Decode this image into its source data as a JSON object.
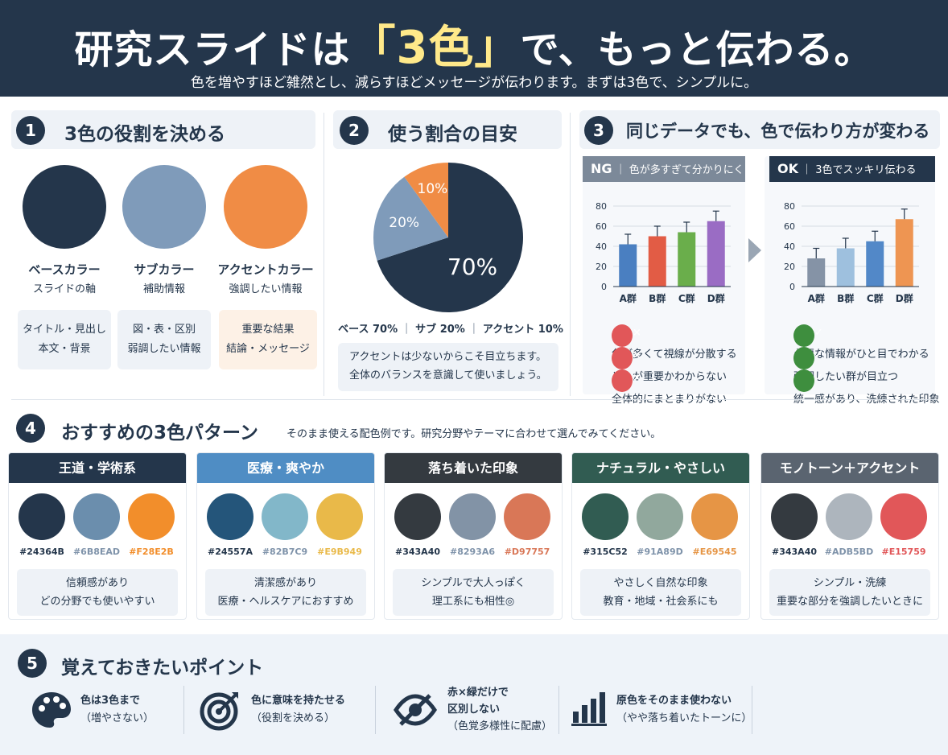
{
  "header": {
    "title_pre": "研究スライドは",
    "title_hl": "「3色」",
    "title_post": "で、もっと伝わる。",
    "subtitle": "色を増やすほど雑然とし、減らすほどメッセージが伝わります。まずは3色で、シンプルに。"
  },
  "sec1": {
    "num": "1",
    "title": "3色の役割を決める",
    "roles": [
      {
        "name": "ベースカラー",
        "sub": "スライドの軸",
        "box": [
          "タイトル・見出し",
          "本文・背景"
        ],
        "color": "#24364B"
      },
      {
        "name": "サブカラー",
        "sub": "補助情報",
        "box": [
          "図・表・区別",
          "弱調したい情報"
        ],
        "color": "#7F9BBA"
      },
      {
        "name": "アクセントカラー",
        "sub": "強調したい情報",
        "box": [
          "重要な結果",
          "結論・メッセージ"
        ],
        "color": "#F08C45"
      }
    ]
  },
  "sec2": {
    "num": "2",
    "title": "使う割合の目安",
    "chart_data": {
      "type": "pie",
      "slices": [
        {
          "label": "70%",
          "value": 70,
          "color": "#24364B"
        },
        {
          "label": "20%",
          "value": 20,
          "color": "#7F9BBA"
        },
        {
          "label": "10%",
          "value": 10,
          "color": "#F08C45"
        }
      ]
    },
    "legend": [
      "ベース 70%",
      "サブ 20%",
      "アクセント 10%"
    ],
    "note": [
      "アクセントは少ないからこそ目立ちます。",
      "全体のバランスを意識して使いましょう。"
    ]
  },
  "sec3": {
    "num": "3",
    "title": "同じデータでも、色で伝わり方が変わる",
    "ng": {
      "tag": "NG",
      "label": "色が多すぎて分かりにくい",
      "items": [
        "色が多くて視線が分散する",
        "どれが重要かわからない",
        "全体的にまとまりがない"
      ]
    },
    "ok": {
      "tag": "OK",
      "label": "3色でスッキリ伝わる",
      "items": [
        "必要な情報がひと目でわかる",
        "強調したい群が目立つ",
        "統一感があり、洗練された印象"
      ]
    },
    "chart_data": [
      {
        "type": "bar",
        "categories": [
          "A群",
          "B群",
          "C群",
          "D群"
        ],
        "values": [
          42,
          50,
          54,
          65
        ],
        "ylim": [
          0,
          80
        ],
        "yticks": [
          "0",
          "20",
          "40",
          "60",
          "80"
        ],
        "colors": [
          "#4A7FC1",
          "#E25C45",
          "#6AAE4B",
          "#9A6CC4"
        ]
      },
      {
        "type": "bar",
        "categories": [
          "A群",
          "B群",
          "C群",
          "D群"
        ],
        "values": [
          28,
          38,
          45,
          67
        ],
        "ylim": [
          0,
          80
        ],
        "yticks": [
          "0",
          "20",
          "40",
          "60",
          "80"
        ],
        "colors": [
          "#8593A6",
          "#9EC0DE",
          "#5288C8",
          "#EE9552"
        ]
      }
    ]
  },
  "sec4": {
    "num": "4",
    "title": "おすすめの3色パターン",
    "sub": "そのまま使える配色例です。研究分野やテーマに合わせて選んでみてください。",
    "cards": [
      {
        "title": "王道・学術系",
        "head": "#24364B",
        "colors": [
          "#24364B",
          "#6B8EAD",
          "#F28E2B"
        ],
        "desc": [
          "信頼感があり",
          "どの分野でも使いやすい"
        ]
      },
      {
        "title": "医療・爽やか",
        "head": "#4F8DC4",
        "colors": [
          "#24557A",
          "#82B7C9",
          "#E9B949"
        ],
        "desc": [
          "清潔感があり",
          "医療・ヘルスケアにおすすめ"
        ]
      },
      {
        "title": "落ち着いた印象",
        "head": "#343A40",
        "colors": [
          "#343A40",
          "#8293A6",
          "#D97757"
        ],
        "desc": [
          "シンプルで大人っぽく",
          "理工系にも相性◎"
        ]
      },
      {
        "title": "ナチュラル・やさしい",
        "head": "#315C52",
        "colors": [
          "#315C52",
          "#91A89D",
          "#E69545"
        ],
        "desc": [
          "やさしく自然な印象",
          "教育・地域・社会系にも"
        ]
      },
      {
        "title": "モノトーン＋アクセント",
        "head": "#5A6470",
        "colors": [
          "#343A40",
          "#ADB5BD",
          "#E15759"
        ],
        "desc": [
          "シンプル・洗練",
          "重要な部分を強調したいときに"
        ]
      }
    ]
  },
  "sec5": {
    "num": "5",
    "title": "覚えておきたいポイント",
    "points": [
      {
        "icon": "palette-icon",
        "lines": [
          "色は3色まで",
          "（増やさない）"
        ]
      },
      {
        "icon": "target-icon",
        "lines": [
          "色に意味を持たせる",
          "（役割を決める）"
        ]
      },
      {
        "icon": "eye-slash-icon",
        "lines": [
          "赤×緑だけで",
          "区別しない",
          "（色覚多様性に配慮）"
        ]
      },
      {
        "icon": "bar-chart-icon",
        "lines": [
          "原色をそのまま使わない",
          "（やや落ち着いたトーンに）"
        ]
      }
    ]
  }
}
